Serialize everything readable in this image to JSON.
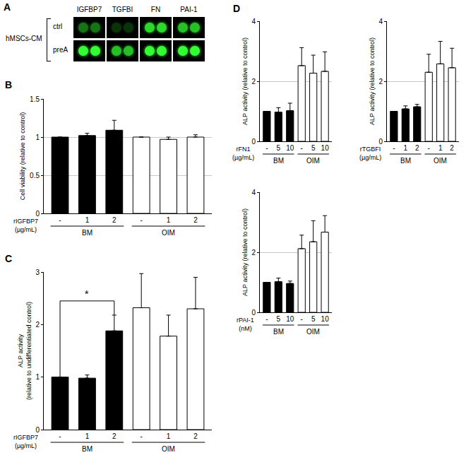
{
  "blot": {
    "panel": "A",
    "group_label": "hMSCs-CM",
    "columns": [
      "IGFBP7",
      "TGFBI",
      "FN",
      "PAI-1"
    ],
    "rows": [
      "ctrl",
      "preA"
    ],
    "signal": [
      [
        0.45,
        0.2,
        0.85,
        0.75
      ],
      [
        1,
        0.75,
        1,
        1
      ]
    ],
    "color": "#33ff33"
  },
  "chart_data": [
    {
      "type": "bar",
      "panel": "B",
      "y_title": "Cell viability (relative to control)",
      "x_title": "rIGFBP7\n(µg/mL)",
      "categories": [
        "-",
        "1",
        "2",
        "-",
        "1",
        "2"
      ],
      "groups": [
        {
          "label": "BM",
          "from": 0,
          "to": 2
        },
        {
          "label": "OIM",
          "from": 3,
          "to": 5
        }
      ],
      "values": [
        1,
        1.02,
        1.09,
        1,
        0.97,
        1.0
      ],
      "errors": [
        0,
        0.03,
        0.13,
        0,
        0.03,
        0.03
      ],
      "colors": [
        "#000000",
        "#000000",
        "#000000",
        "#ffffff",
        "#ffffff",
        "#ffffff"
      ],
      "ylim": [
        0,
        1.5
      ],
      "yticks": [
        0,
        0.5,
        1,
        1.5
      ],
      "grid": true
    },
    {
      "type": "bar",
      "panel": "C",
      "y_title": "ALP activity\n(relative to undifferentiated control)",
      "x_title": "rIGFBP7\n(µg/mL)",
      "categories": [
        "-",
        "1",
        "2",
        "-",
        "1",
        "2"
      ],
      "groups": [
        {
          "label": "BM",
          "from": 0,
          "to": 2
        },
        {
          "label": "OIM",
          "from": 3,
          "to": 5
        }
      ],
      "values": [
        1,
        0.98,
        1.88,
        2.32,
        1.78,
        2.3
      ],
      "errors": [
        0,
        0.06,
        0.3,
        0.65,
        0.4,
        0.6
      ],
      "colors": [
        "#000000",
        "#000000",
        "#000000",
        "#ffffff",
        "#ffffff",
        "#ffffff"
      ],
      "ylim": [
        0,
        3
      ],
      "yticks": [
        0,
        1,
        2,
        3
      ],
      "grid": false,
      "significance": [
        {
          "from": 0,
          "to": 2,
          "y": 2.45,
          "label": "*"
        }
      ]
    },
    {
      "type": "bar",
      "panel": "D",
      "y_title": "ALP activity (relative to control)",
      "x_title": "rFN1\n(µg/mL)",
      "categories": [
        "-",
        "5",
        "10",
        "-",
        "5",
        "10"
      ],
      "groups": [
        {
          "label": "BM",
          "from": 0,
          "to": 2
        },
        {
          "label": "OIM",
          "from": 3,
          "to": 5
        }
      ],
      "values": [
        1,
        0.97,
        1.02,
        2.52,
        2.27,
        2.33
      ],
      "errors": [
        0,
        0.15,
        0.25,
        0.6,
        0.6,
        0.65
      ],
      "colors": [
        "#000000",
        "#000000",
        "#000000",
        "#ffffff",
        "#ffffff",
        "#ffffff"
      ],
      "ylim": [
        0,
        4
      ],
      "yticks": [
        0,
        2,
        4
      ],
      "grid": true
    },
    {
      "type": "bar",
      "y_title": "ALP activity (relative to control)",
      "x_title": "rTGBFI\n(µg/mL)",
      "categories": [
        "-",
        "1",
        "2",
        "-",
        "1",
        "2"
      ],
      "groups": [
        {
          "label": "BM",
          "from": 0,
          "to": 2
        },
        {
          "label": "OIM",
          "from": 3,
          "to": 5
        }
      ],
      "values": [
        1,
        1.08,
        1.15,
        2.3,
        2.58,
        2.45
      ],
      "errors": [
        0,
        0.1,
        0.08,
        0.6,
        0.75,
        0.65
      ],
      "colors": [
        "#000000",
        "#000000",
        "#000000",
        "#ffffff",
        "#ffffff",
        "#ffffff"
      ],
      "ylim": [
        0,
        4
      ],
      "yticks": [
        0,
        2,
        4
      ],
      "grid": true
    },
    {
      "type": "bar",
      "y_title": "ALP activity (relative to control)",
      "x_title": "rPAI-1\n(nM)",
      "categories": [
        "-",
        "5",
        "10",
        "-",
        "5",
        "10"
      ],
      "groups": [
        {
          "label": "BM",
          "from": 0,
          "to": 2
        },
        {
          "label": "OIM",
          "from": 3,
          "to": 5
        }
      ],
      "values": [
        1,
        1.02,
        0.96,
        2.12,
        2.35,
        2.67
      ],
      "errors": [
        0,
        0.12,
        0.08,
        0.45,
        0.7,
        0.55
      ],
      "colors": [
        "#000000",
        "#000000",
        "#000000",
        "#ffffff",
        "#ffffff",
        "#ffffff"
      ],
      "ylim": [
        0,
        4
      ],
      "yticks": [
        0,
        2,
        4
      ],
      "grid": true
    }
  ]
}
